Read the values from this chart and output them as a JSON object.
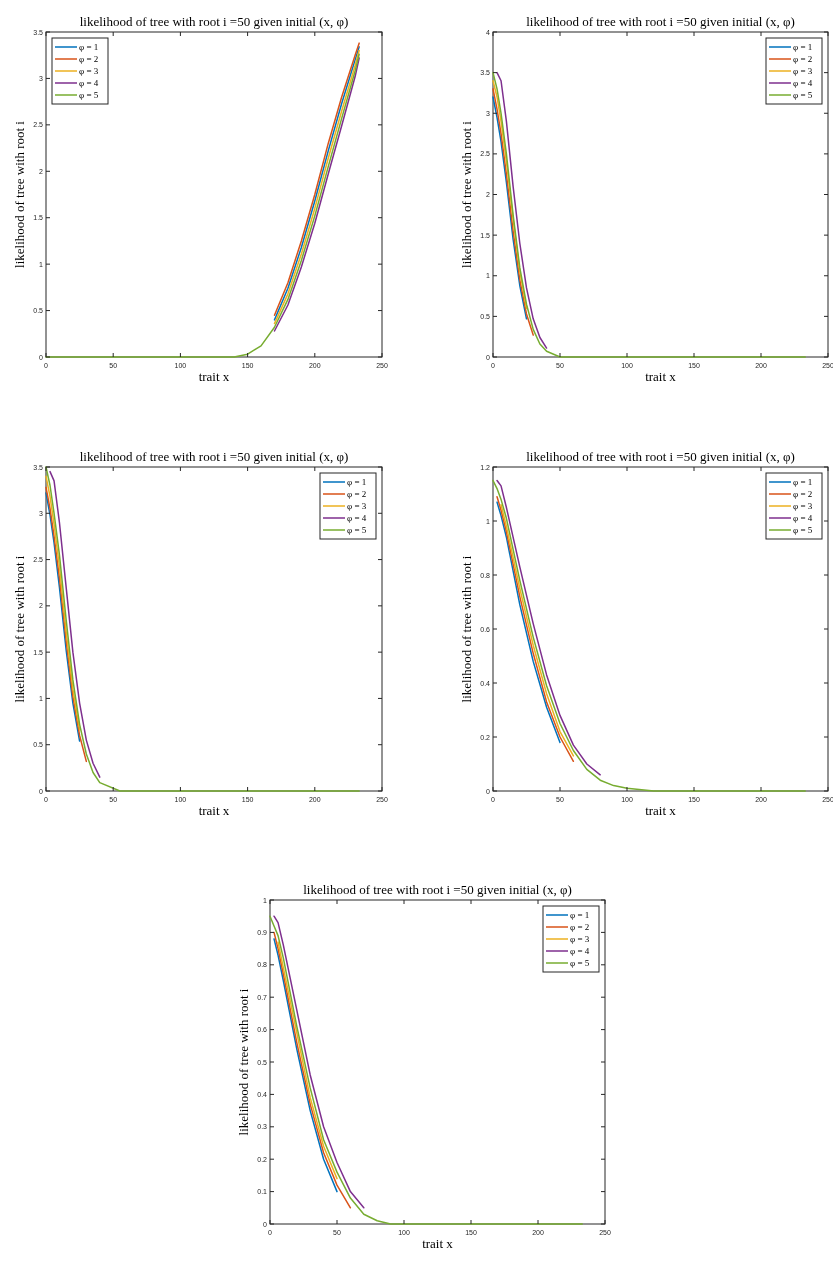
{
  "chart_data": [
    {
      "type": "line",
      "title": "likelihood of tree with root i =50 given initial (x, φ)",
      "xlabel": "trait x",
      "ylabel": "likelihood of tree with root i",
      "xlim": [
        0,
        250
      ],
      "xticks": [
        0,
        50,
        100,
        150,
        200,
        250
      ],
      "ylim": [
        0,
        3.5
      ],
      "yticks": [
        0,
        0.5,
        1,
        1.5,
        2,
        2.5,
        3,
        3.5
      ],
      "legend": "top left",
      "series": [
        {
          "name": "φ = 1",
          "color": "#0072bd",
          "x": [
            170,
            180,
            190,
            200,
            210,
            220,
            230,
            233
          ],
          "values": [
            0.4,
            0.74,
            1.18,
            1.68,
            2.22,
            2.73,
            3.2,
            3.34
          ]
        },
        {
          "name": "φ = 2",
          "color": "#d95319",
          "x": [
            170,
            180,
            190,
            200,
            210,
            220,
            230,
            233
          ],
          "values": [
            0.45,
            0.8,
            1.25,
            1.75,
            2.3,
            2.8,
            3.25,
            3.38
          ]
        },
        {
          "name": "φ = 3",
          "color": "#edb120",
          "x": [
            170,
            180,
            190,
            200,
            210,
            220,
            230,
            233
          ],
          "values": [
            0.36,
            0.68,
            1.11,
            1.6,
            2.14,
            2.65,
            3.14,
            3.3
          ]
        },
        {
          "name": "φ = 4",
          "color": "#7e2f8e",
          "x": [
            170,
            180,
            190,
            200,
            210,
            220,
            230,
            233
          ],
          "values": [
            0.28,
            0.56,
            0.97,
            1.44,
            1.97,
            2.49,
            3.02,
            3.22
          ]
        },
        {
          "name": "φ = 5",
          "color": "#77ac30",
          "x": [
            0,
            140,
            150,
            160,
            170,
            180,
            190,
            200,
            210,
            220,
            230,
            233
          ],
          "values": [
            0,
            0,
            0.03,
            0.12,
            0.32,
            0.62,
            1.04,
            1.52,
            2.05,
            2.57,
            3.08,
            3.26
          ]
        }
      ]
    },
    {
      "type": "line",
      "title": "likelihood of tree with root i =50 given initial (x, φ)",
      "xlabel": "trait x",
      "ylabel": "likelihood of tree with root i",
      "xlim": [
        0,
        250
      ],
      "xticks": [
        0,
        50,
        100,
        150,
        200,
        250
      ],
      "ylim": [
        0,
        4
      ],
      "yticks": [
        0,
        0.5,
        1,
        1.5,
        2,
        2.5,
        3,
        3.5,
        4
      ],
      "legend": "top right",
      "series": [
        {
          "name": "φ = 1",
          "color": "#0072bd",
          "x": [
            0,
            3,
            6,
            10,
            15,
            20,
            25
          ],
          "values": [
            3.2,
            2.95,
            2.65,
            2.15,
            1.45,
            0.88,
            0.47
          ]
        },
        {
          "name": "φ = 2",
          "color": "#d95319",
          "x": [
            0,
            3,
            6,
            10,
            15,
            20,
            25,
            30
          ],
          "values": [
            3.3,
            3.05,
            2.75,
            2.25,
            1.55,
            0.95,
            0.53,
            0.27
          ]
        },
        {
          "name": "φ = 3",
          "color": "#edb120",
          "x": [
            0,
            3,
            6,
            10,
            15,
            20,
            25
          ],
          "values": [
            3.4,
            3.2,
            2.9,
            2.4,
            1.7,
            1.05,
            0.6
          ]
        },
        {
          "name": "φ = 4",
          "color": "#7e2f8e",
          "x": [
            3,
            6,
            10,
            15,
            20,
            25,
            30,
            35,
            40
          ],
          "values": [
            3.5,
            3.4,
            2.9,
            2.1,
            1.4,
            0.85,
            0.47,
            0.24,
            0.11
          ]
        },
        {
          "name": "φ = 5",
          "color": "#77ac30",
          "x": [
            0,
            3,
            6,
            10,
            15,
            20,
            25,
            30,
            35,
            40,
            50,
            233
          ],
          "values": [
            3.5,
            3.3,
            3.0,
            2.5,
            1.75,
            1.1,
            0.65,
            0.34,
            0.16,
            0.07,
            0,
            0
          ]
        }
      ]
    },
    {
      "type": "line",
      "title": "likelihood of tree with root i =50 given initial (x, φ)",
      "xlabel": "trait x",
      "ylabel": "likelihood of tree with root i",
      "xlim": [
        0,
        250
      ],
      "xticks": [
        0,
        50,
        100,
        150,
        200,
        250
      ],
      "ylim": [
        0,
        3.5
      ],
      "yticks": [
        0,
        0.5,
        1,
        1.5,
        2,
        2.5,
        3,
        3.5
      ],
      "legend": "top right",
      "series": [
        {
          "name": "φ = 1",
          "color": "#0072bd",
          "x": [
            0,
            3,
            6,
            10,
            15,
            20,
            25
          ],
          "values": [
            3.22,
            2.98,
            2.68,
            2.2,
            1.52,
            0.95,
            0.54
          ]
        },
        {
          "name": "φ = 2",
          "color": "#d95319",
          "x": [
            0,
            3,
            6,
            10,
            15,
            20,
            25,
            30
          ],
          "values": [
            3.28,
            3.05,
            2.75,
            2.3,
            1.62,
            1.02,
            0.6,
            0.32
          ]
        },
        {
          "name": "φ = 3",
          "color": "#edb120",
          "x": [
            0,
            3,
            6,
            10,
            15,
            20,
            25
          ],
          "values": [
            3.4,
            3.18,
            2.88,
            2.42,
            1.72,
            1.1,
            0.66
          ]
        },
        {
          "name": "φ = 4",
          "color": "#7e2f8e",
          "x": [
            3,
            6,
            10,
            15,
            20,
            25,
            30,
            35,
            40
          ],
          "values": [
            3.45,
            3.35,
            2.9,
            2.2,
            1.5,
            0.95,
            0.55,
            0.3,
            0.15
          ]
        },
        {
          "name": "φ = 5",
          "color": "#77ac30",
          "x": [
            0,
            3,
            6,
            10,
            15,
            20,
            25,
            30,
            35,
            40,
            55,
            233
          ],
          "values": [
            3.5,
            3.3,
            3.0,
            2.55,
            1.85,
            1.2,
            0.72,
            0.4,
            0.2,
            0.09,
            0,
            0
          ]
        }
      ]
    },
    {
      "type": "line",
      "title": "likelihood of tree with root i =50 given initial (x, φ)",
      "xlabel": "trait x",
      "ylabel": "likelihood of tree with root i",
      "xlim": [
        0,
        250
      ],
      "xticks": [
        0,
        50,
        100,
        150,
        200,
        250
      ],
      "ylim": [
        0,
        1.2
      ],
      "yticks": [
        0,
        0.2,
        0.4,
        0.6,
        0.8,
        1,
        1.2
      ],
      "legend": "top right",
      "series": [
        {
          "name": "φ = 1",
          "color": "#0072bd",
          "x": [
            3,
            6,
            10,
            20,
            30,
            40,
            50
          ],
          "values": [
            1.07,
            1.02,
            0.94,
            0.69,
            0.48,
            0.31,
            0.18
          ]
        },
        {
          "name": "φ = 2",
          "color": "#d95319",
          "x": [
            3,
            6,
            10,
            20,
            30,
            40,
            50,
            60
          ],
          "values": [
            1.09,
            1.04,
            0.96,
            0.72,
            0.51,
            0.33,
            0.2,
            0.11
          ]
        },
        {
          "name": "φ = 3",
          "color": "#edb120",
          "x": [
            6,
            10,
            20,
            30,
            40,
            50,
            60
          ],
          "values": [
            1.06,
            0.98,
            0.75,
            0.54,
            0.36,
            0.22,
            0.13
          ]
        },
        {
          "name": "φ = 4",
          "color": "#7e2f8e",
          "x": [
            3,
            6,
            10,
            20,
            30,
            40,
            50,
            60,
            70,
            80
          ],
          "values": [
            1.15,
            1.13,
            1.05,
            0.83,
            0.62,
            0.43,
            0.28,
            0.17,
            0.1,
            0.06
          ]
        },
        {
          "name": "φ = 5",
          "color": "#77ac30",
          "x": [
            0,
            3,
            6,
            10,
            20,
            30,
            40,
            50,
            60,
            70,
            80,
            90,
            100,
            120,
            233
          ],
          "values": [
            1.15,
            1.12,
            1.08,
            1.01,
            0.78,
            0.57,
            0.39,
            0.25,
            0.15,
            0.08,
            0.04,
            0.02,
            0.01,
            0,
            0
          ]
        }
      ]
    },
    {
      "type": "line",
      "title": "likelihood of tree with root i =50 given initial (x, φ)",
      "xlabel": "trait x",
      "ylabel": "likelihood of tree with root i",
      "xlim": [
        0,
        250
      ],
      "xticks": [
        0,
        50,
        100,
        150,
        200,
        250
      ],
      "ylim": [
        0,
        1
      ],
      "yticks": [
        0,
        0.1,
        0.2,
        0.3,
        0.4,
        0.5,
        0.6,
        0.7,
        0.8,
        0.9,
        1
      ],
      "legend": "top right",
      "series": [
        {
          "name": "φ = 1",
          "color": "#0072bd",
          "x": [
            3,
            6,
            10,
            20,
            30,
            40,
            50
          ],
          "values": [
            0.88,
            0.83,
            0.75,
            0.54,
            0.35,
            0.2,
            0.1
          ]
        },
        {
          "name": "φ = 2",
          "color": "#d95319",
          "x": [
            3,
            6,
            10,
            20,
            30,
            40,
            50,
            60
          ],
          "values": [
            0.9,
            0.85,
            0.77,
            0.56,
            0.37,
            0.22,
            0.12,
            0.05
          ]
        },
        {
          "name": "φ = 3",
          "color": "#edb120",
          "x": [
            6,
            10,
            20,
            30,
            40,
            50
          ],
          "values": [
            0.87,
            0.79,
            0.59,
            0.39,
            0.24,
            0.14
          ]
        },
        {
          "name": "φ = 4",
          "color": "#7e2f8e",
          "x": [
            3,
            6,
            10,
            20,
            30,
            40,
            50,
            60,
            70
          ],
          "values": [
            0.95,
            0.93,
            0.86,
            0.66,
            0.46,
            0.3,
            0.19,
            0.1,
            0.05
          ]
        },
        {
          "name": "φ = 5",
          "color": "#77ac30",
          "x": [
            0,
            3,
            6,
            10,
            20,
            30,
            40,
            50,
            60,
            70,
            80,
            90,
            233
          ],
          "values": [
            0.95,
            0.92,
            0.89,
            0.82,
            0.61,
            0.42,
            0.26,
            0.16,
            0.08,
            0.03,
            0.01,
            0,
            0
          ]
        }
      ]
    }
  ]
}
